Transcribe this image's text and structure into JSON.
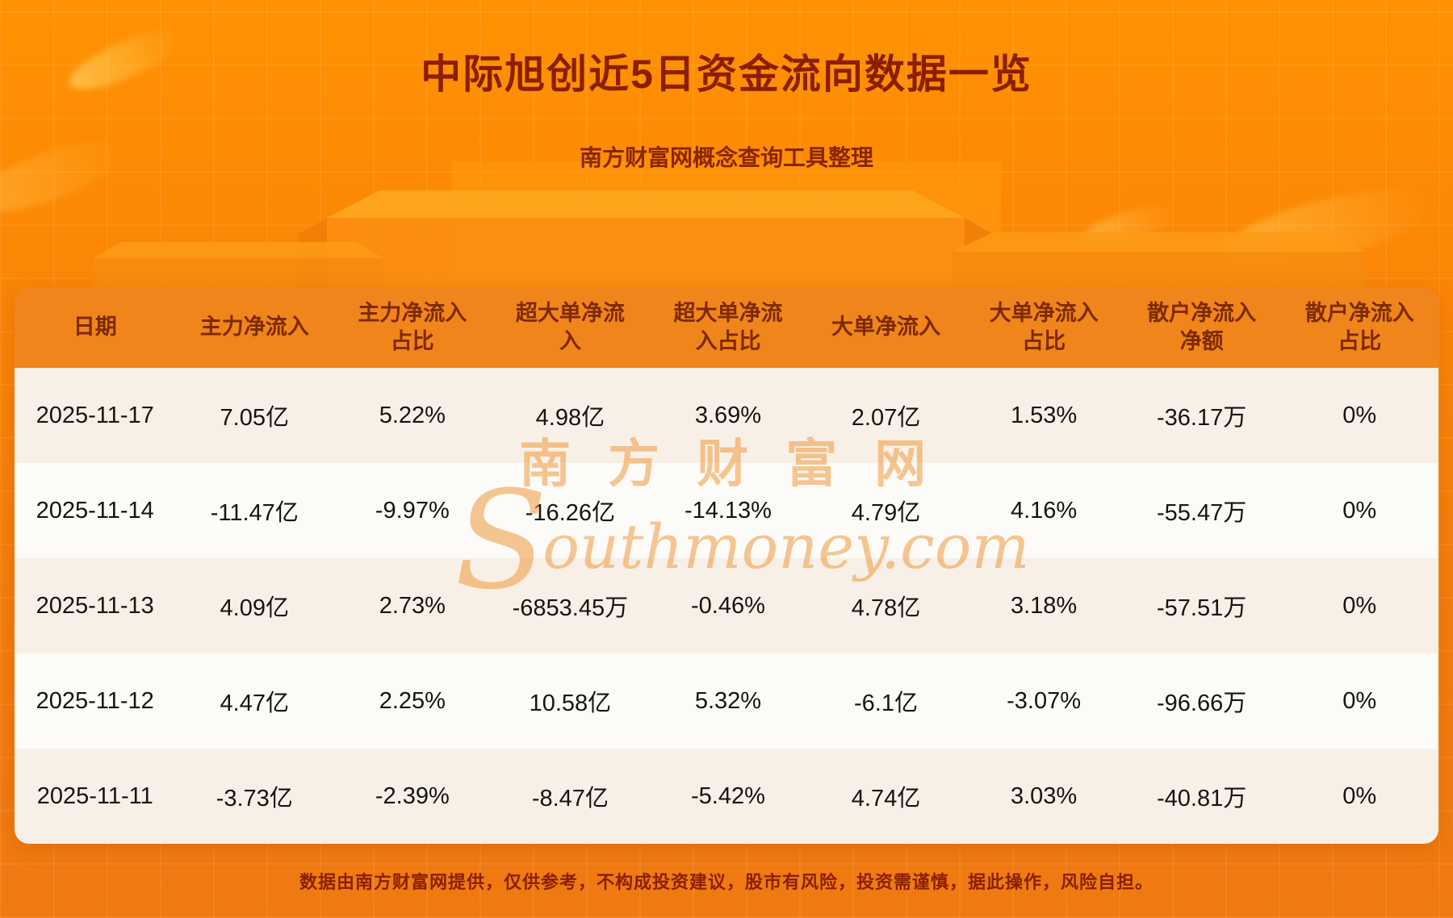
{
  "page": {
    "title": "中际旭创近5日资金流向数据一览",
    "subtitle": "南方财富网概念查询工具整理",
    "footer": "数据由南方财富网提供，仅供参考，不构成投资建议，股市有风险，投资需谨慎，据此操作，风险自担。",
    "watermark": {
      "cn": "南方财富网",
      "s": "S",
      "en": "outhmoney.com"
    }
  },
  "colors": {
    "background_orange": "#fb8406",
    "title_text": "#8a1f00",
    "table_header_bg": "#f0851c",
    "table_header_text": "#7e2a00",
    "row_cream": "#f8f0e6",
    "row_white": "#fdfbf8",
    "body_text": "#141414",
    "watermark": "#ef9a3e"
  },
  "chart_data": {
    "type": "table",
    "title": "中际旭创近5日资金流向数据一览",
    "columns": [
      "日期",
      "主力净流入",
      "主力净流入占比",
      "超大单净流入",
      "超大单净流入占比",
      "大单净流入",
      "大单净流入占比",
      "散户净流入净额",
      "散户净流入占比"
    ],
    "rows": [
      [
        "2025-11-17",
        "7.05亿",
        "5.22%",
        "4.98亿",
        "3.69%",
        "2.07亿",
        "1.53%",
        "-36.17万",
        "0%"
      ],
      [
        "2025-11-14",
        "-11.47亿",
        "-9.97%",
        "-16.26亿",
        "-14.13%",
        "4.79亿",
        "4.16%",
        "-55.47万",
        "0%"
      ],
      [
        "2025-11-13",
        "4.09亿",
        "2.73%",
        "-6853.45万",
        "-0.46%",
        "4.78亿",
        "3.18%",
        "-57.51万",
        "0%"
      ],
      [
        "2025-11-12",
        "4.47亿",
        "2.25%",
        "10.58亿",
        "5.32%",
        "-6.1亿",
        "-3.07%",
        "-96.66万",
        "0%"
      ],
      [
        "2025-11-11",
        "-3.73亿",
        "-2.39%",
        "-8.47亿",
        "-5.42%",
        "4.74亿",
        "3.03%",
        "-40.81万",
        "0%"
      ]
    ]
  }
}
